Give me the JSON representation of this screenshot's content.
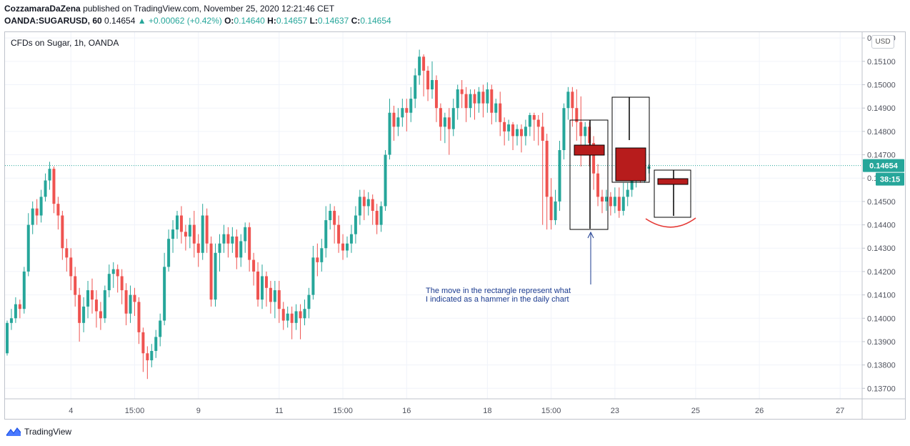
{
  "header": {
    "publisher": "CozzamaraDaZena",
    "published_text": "published on TradingView.com, November 25, 2020 12:21:46 CET",
    "symbol": "OANDA:SUGARUSD, 60",
    "last": "0.14654",
    "change": "+0.00062 (+0.42%)",
    "o_label": "O:",
    "o": "0.14640",
    "h_label": "H:",
    "h": "0.14657",
    "l_label": "L:",
    "l": "0.14637",
    "c_label": "C:",
    "c": "0.14654"
  },
  "chart_title": "CFDs on Sugar, 1h, OANDA",
  "currency": "USD",
  "price_tag": "0.14654",
  "countdown": "38:15",
  "annotation": {
    "line1": "The move in the rectangle represent what",
    "line2": "I indicated as a hammer in the daily chart"
  },
  "footer": {
    "brand": "TradingView"
  },
  "colors": {
    "up": "#26a69a",
    "down": "#ef5350",
    "box_fill": "#b71c1c",
    "annotation": "#1a3a8f",
    "arc": "#e53935"
  },
  "chart_data": {
    "type": "candlestick",
    "ylim": [
      0.1365,
      0.1525
    ],
    "y_ticks": [
      "0.13700",
      "0.13800",
      "0.13900",
      "0.14000",
      "0.14100",
      "0.14200",
      "0.14300",
      "0.14400",
      "0.14500",
      "0.14600",
      "0.14700",
      "0.14800",
      "0.14900",
      "0.15000",
      "0.15100",
      "0.15200"
    ],
    "y_tick_values": [
      0.137,
      0.138,
      0.139,
      0.14,
      0.141,
      0.142,
      0.143,
      0.144,
      0.145,
      0.146,
      0.147,
      0.148,
      0.149,
      0.15,
      0.151,
      0.152
    ],
    "x_ticks": [
      {
        "label": "4",
        "i": 15
      },
      {
        "label": "15:00",
        "i": 30
      },
      {
        "label": "9",
        "i": 45
      },
      {
        "label": "11",
        "i": 64
      },
      {
        "label": "15:00",
        "i": 79
      },
      {
        "label": "16",
        "i": 94
      },
      {
        "label": "18",
        "i": 113
      },
      {
        "label": "15:00",
        "i": 128
      },
      {
        "label": "23",
        "i": 143
      },
      {
        "label": "25",
        "i": 162
      },
      {
        "label": "26",
        "i": 177
      },
      {
        "label": "27",
        "i": 196
      }
    ],
    "last_price": 0.14654,
    "candles": [
      [
        0.1385,
        0.1398,
        0.1384,
        0.1399
      ],
      [
        0.1398,
        0.14,
        0.1395,
        0.1404
      ],
      [
        0.14,
        0.1406,
        0.1398,
        0.1409
      ],
      [
        0.1406,
        0.1404,
        0.14,
        0.1408
      ],
      [
        0.1404,
        0.142,
        0.1402,
        0.1422
      ],
      [
        0.142,
        0.144,
        0.1418,
        0.1445
      ],
      [
        0.144,
        0.1447,
        0.1436,
        0.145
      ],
      [
        0.1447,
        0.1444,
        0.144,
        0.1451
      ],
      [
        0.1444,
        0.1452,
        0.1441,
        0.1455
      ],
      [
        0.1452,
        0.1459,
        0.145,
        0.1462
      ],
      [
        0.1459,
        0.1464,
        0.1455,
        0.1467
      ],
      [
        0.1464,
        0.1449,
        0.1445,
        0.1465
      ],
      [
        0.1449,
        0.1444,
        0.1438,
        0.1452
      ],
      [
        0.1444,
        0.143,
        0.1425,
        0.1446
      ],
      [
        0.143,
        0.1426,
        0.142,
        0.1434
      ],
      [
        0.1426,
        0.1418,
        0.1412,
        0.143
      ],
      [
        0.1418,
        0.141,
        0.1405,
        0.1422
      ],
      [
        0.141,
        0.1398,
        0.139,
        0.1413
      ],
      [
        0.1398,
        0.1405,
        0.1394,
        0.1409
      ],
      [
        0.1405,
        0.1412,
        0.14,
        0.1416
      ],
      [
        0.1412,
        0.1408,
        0.1402,
        0.1417
      ],
      [
        0.1408,
        0.1403,
        0.1396,
        0.1412
      ],
      [
        0.1403,
        0.14,
        0.1395,
        0.1407
      ],
      [
        0.14,
        0.1412,
        0.1398,
        0.1414
      ],
      [
        0.1412,
        0.1419,
        0.1409,
        0.1423
      ],
      [
        0.1419,
        0.1421,
        0.1413,
        0.1424
      ],
      [
        0.1421,
        0.1418,
        0.1411,
        0.1423
      ],
      [
        0.1418,
        0.1412,
        0.1406,
        0.1421
      ],
      [
        0.1412,
        0.1402,
        0.1397,
        0.1415
      ],
      [
        0.1402,
        0.141,
        0.1398,
        0.1414
      ],
      [
        0.141,
        0.1407,
        0.1401,
        0.1413
      ],
      [
        0.1407,
        0.1394,
        0.1389,
        0.1409
      ],
      [
        0.1394,
        0.1385,
        0.1377,
        0.1396
      ],
      [
        0.1385,
        0.1382,
        0.1374,
        0.1388
      ],
      [
        0.1382,
        0.1386,
        0.1379,
        0.1389
      ],
      [
        0.1386,
        0.1392,
        0.1383,
        0.1395
      ],
      [
        0.1392,
        0.1399,
        0.1388,
        0.1402
      ],
      [
        0.1399,
        0.1422,
        0.1397,
        0.1428
      ],
      [
        0.1422,
        0.1434,
        0.142,
        0.1438
      ],
      [
        0.1434,
        0.1438,
        0.1428,
        0.1442
      ],
      [
        0.1438,
        0.1444,
        0.1434,
        0.1446
      ],
      [
        0.1444,
        0.1437,
        0.1432,
        0.1448
      ],
      [
        0.1437,
        0.1435,
        0.1429,
        0.144
      ],
      [
        0.1435,
        0.144,
        0.143,
        0.1443
      ],
      [
        0.144,
        0.1432,
        0.1426,
        0.1446
      ],
      [
        0.1432,
        0.1428,
        0.1422,
        0.1436
      ],
      [
        0.1428,
        0.1444,
        0.1425,
        0.1449
      ],
      [
        0.1444,
        0.1432,
        0.1428,
        0.1447
      ],
      [
        0.1432,
        0.1408,
        0.1405,
        0.1435
      ],
      [
        0.1408,
        0.1428,
        0.1405,
        0.1432
      ],
      [
        0.1428,
        0.1432,
        0.142,
        0.1436
      ],
      [
        0.1432,
        0.1436,
        0.1428,
        0.144
      ],
      [
        0.1436,
        0.1432,
        0.1426,
        0.1439
      ],
      [
        0.1432,
        0.1435,
        0.1428,
        0.1439
      ],
      [
        0.1435,
        0.1426,
        0.1421,
        0.1438
      ],
      [
        0.1426,
        0.1433,
        0.1422,
        0.1436
      ],
      [
        0.1433,
        0.1439,
        0.1428,
        0.1441
      ],
      [
        0.1439,
        0.1425,
        0.142,
        0.1441
      ],
      [
        0.1425,
        0.142,
        0.1414,
        0.1428
      ],
      [
        0.142,
        0.1408,
        0.1405,
        0.1424
      ],
      [
        0.1408,
        0.1418,
        0.1404,
        0.1423
      ],
      [
        0.1418,
        0.1413,
        0.1405,
        0.142
      ],
      [
        0.1413,
        0.1407,
        0.1402,
        0.1416
      ],
      [
        0.1407,
        0.1412,
        0.14,
        0.1416
      ],
      [
        0.1412,
        0.1404,
        0.1398,
        0.1416
      ],
      [
        0.1404,
        0.1399,
        0.1395,
        0.1407
      ],
      [
        0.1399,
        0.1402,
        0.1396,
        0.1405
      ],
      [
        0.1402,
        0.1398,
        0.1391,
        0.1405
      ],
      [
        0.1398,
        0.1403,
        0.1395,
        0.1406
      ],
      [
        0.1403,
        0.14,
        0.1391,
        0.1406
      ],
      [
        0.14,
        0.1404,
        0.1397,
        0.1408
      ],
      [
        0.1404,
        0.141,
        0.14,
        0.1413
      ],
      [
        0.141,
        0.1426,
        0.1408,
        0.1431
      ],
      [
        0.1426,
        0.1424,
        0.1418,
        0.1432
      ],
      [
        0.1424,
        0.143,
        0.142,
        0.1434
      ],
      [
        0.143,
        0.1442,
        0.1426,
        0.1448
      ],
      [
        0.1442,
        0.1446,
        0.1438,
        0.1449
      ],
      [
        0.1446,
        0.144,
        0.1432,
        0.1448
      ],
      [
        0.144,
        0.1432,
        0.1428,
        0.1444
      ],
      [
        0.1432,
        0.1429,
        0.1425,
        0.1436
      ],
      [
        0.1429,
        0.1432,
        0.1426,
        0.1435
      ],
      [
        0.1432,
        0.1436,
        0.1428,
        0.144
      ],
      [
        0.1436,
        0.1444,
        0.1432,
        0.1448
      ],
      [
        0.1444,
        0.1452,
        0.144,
        0.1455
      ],
      [
        0.1452,
        0.1448,
        0.1442,
        0.1455
      ],
      [
        0.1448,
        0.1451,
        0.1444,
        0.1454
      ],
      [
        0.1451,
        0.1446,
        0.144,
        0.1453
      ],
      [
        0.1446,
        0.144,
        0.1436,
        0.1449
      ],
      [
        0.144,
        0.1448,
        0.1437,
        0.145
      ],
      [
        0.1448,
        0.147,
        0.1446,
        0.1472
      ],
      [
        0.147,
        0.1488,
        0.1468,
        0.1494
      ],
      [
        0.1488,
        0.1482,
        0.1476,
        0.1491
      ],
      [
        0.1482,
        0.1486,
        0.1478,
        0.149
      ],
      [
        0.1486,
        0.149,
        0.1482,
        0.1494
      ],
      [
        0.149,
        0.1488,
        0.148,
        0.1494
      ],
      [
        0.1488,
        0.1494,
        0.1484,
        0.1499
      ],
      [
        0.1494,
        0.1504,
        0.149,
        0.1507
      ],
      [
        0.1504,
        0.1512,
        0.15,
        0.1515
      ],
      [
        0.1512,
        0.1506,
        0.1495,
        0.1513
      ],
      [
        0.1506,
        0.1498,
        0.1493,
        0.1508
      ],
      [
        0.1498,
        0.1502,
        0.1494,
        0.151
      ],
      [
        0.1502,
        0.149,
        0.1484,
        0.1504
      ],
      [
        0.149,
        0.1482,
        0.1476,
        0.1492
      ],
      [
        0.1482,
        0.1486,
        0.1475,
        0.1488
      ],
      [
        0.1486,
        0.1481,
        0.147,
        0.149
      ],
      [
        0.1481,
        0.149,
        0.1478,
        0.1494
      ],
      [
        0.149,
        0.1498,
        0.1485,
        0.15
      ],
      [
        0.1498,
        0.1496,
        0.149,
        0.1502
      ],
      [
        0.1496,
        0.149,
        0.1484,
        0.1499
      ],
      [
        0.149,
        0.1496,
        0.1486,
        0.1498
      ],
      [
        0.1496,
        0.1492,
        0.1485,
        0.1498
      ],
      [
        0.1492,
        0.1497,
        0.1488,
        0.1499
      ],
      [
        0.1497,
        0.1492,
        0.1486,
        0.15
      ],
      [
        0.1492,
        0.1498,
        0.1488,
        0.1501
      ],
      [
        0.1498,
        0.1488,
        0.1483,
        0.15
      ],
      [
        0.1488,
        0.1492,
        0.1484,
        0.1494
      ],
      [
        0.1492,
        0.1484,
        0.1478,
        0.1497
      ],
      [
        0.1484,
        0.148,
        0.1474,
        0.1486
      ],
      [
        0.148,
        0.1483,
        0.1476,
        0.1485
      ],
      [
        0.1483,
        0.1478,
        0.1472,
        0.1484
      ],
      [
        0.1478,
        0.1481,
        0.1474,
        0.1483
      ],
      [
        0.1481,
        0.1478,
        0.1471,
        0.1483
      ],
      [
        0.1478,
        0.1482,
        0.1474,
        0.1485
      ],
      [
        0.1482,
        0.1487,
        0.1478,
        0.1488
      ],
      [
        0.1487,
        0.1485,
        0.1476,
        0.1488
      ],
      [
        0.1485,
        0.1482,
        0.1474,
        0.1487
      ],
      [
        0.1482,
        0.1476,
        0.144,
        0.1488
      ],
      [
        0.1476,
        0.1452,
        0.1438,
        0.1479
      ],
      [
        0.1452,
        0.1442,
        0.1438,
        0.146
      ],
      [
        0.1442,
        0.145,
        0.144,
        0.1455
      ],
      [
        0.145,
        0.1472,
        0.1446,
        0.1476
      ],
      [
        0.1472,
        0.149,
        0.1468,
        0.1492
      ],
      [
        0.149,
        0.1497,
        0.1485,
        0.1499
      ],
      [
        0.1497,
        0.149,
        0.1482,
        0.1499
      ],
      [
        0.149,
        0.1484,
        0.1476,
        0.1498
      ],
      [
        0.1484,
        0.1478,
        0.1465,
        0.1495
      ],
      [
        0.1478,
        0.1482,
        0.147,
        0.1484
      ],
      [
        0.1482,
        0.1475,
        0.1465,
        0.1484
      ],
      [
        0.1475,
        0.1462,
        0.1455,
        0.1478
      ],
      [
        0.1462,
        0.1452,
        0.1448,
        0.1466
      ],
      [
        0.1452,
        0.145,
        0.1445,
        0.1455
      ],
      [
        0.145,
        0.1452,
        0.1446,
        0.1455
      ],
      [
        0.1452,
        0.1448,
        0.1444,
        0.1454
      ],
      [
        0.1448,
        0.1452,
        0.1445,
        0.1456
      ],
      [
        0.1452,
        0.1446,
        0.1443,
        0.1456
      ],
      [
        0.1446,
        0.1452,
        0.1444,
        0.1458
      ],
      [
        0.1452,
        0.1455,
        0.1448,
        0.1458
      ],
      [
        0.1455,
        0.146,
        0.1452,
        0.1462
      ],
      [
        0.146,
        0.1463,
        0.1456,
        0.1465
      ],
      [
        0.1463,
        0.1462,
        0.1458,
        0.1465
      ],
      [
        0.1462,
        0.1464,
        0.1458,
        0.1466
      ],
      [
        0.1464,
        0.1465,
        0.1462,
        0.1466
      ]
    ]
  }
}
